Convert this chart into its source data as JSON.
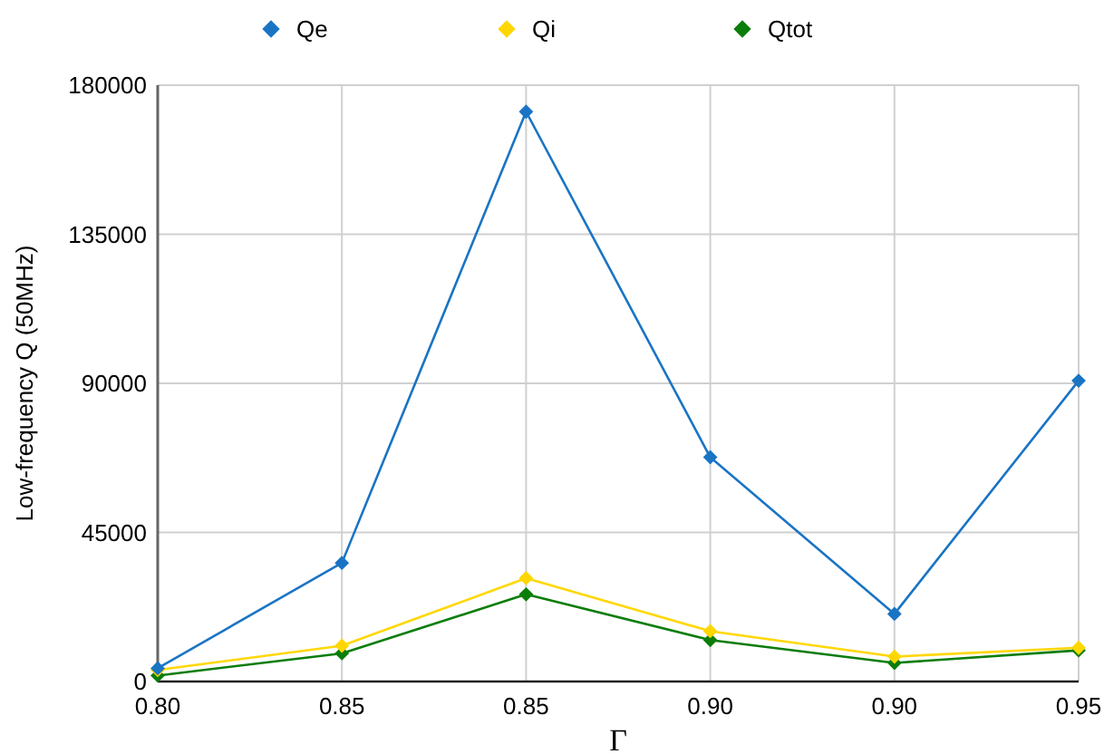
{
  "chart_data": {
    "type": "line",
    "xlabel": "Γ",
    "ylabel": "Low-frequency Q (50MHz)",
    "categories": [
      "0.80",
      "0.85",
      "0.85",
      "0.90",
      "0.90",
      "0.95"
    ],
    "series": [
      {
        "name": "Qe",
        "color": "#1a74c4",
        "values": [
          4000,
          35800,
          172000,
          67700,
          20400,
          90800
        ]
      },
      {
        "name": "Qi",
        "color": "#ffd700",
        "values": [
          3500,
          10800,
          31200,
          15200,
          7500,
          10200
        ]
      },
      {
        "name": "Qtot",
        "color": "#0a7d0a",
        "values": [
          1800,
          8500,
          26300,
          12500,
          5600,
          9400
        ]
      }
    ],
    "ylim": [
      0,
      180000
    ],
    "yticks": [
      0,
      45000,
      90000,
      135000,
      180000
    ],
    "grid": true,
    "legend": "top",
    "marker": "diamond",
    "line_style": "solid"
  }
}
